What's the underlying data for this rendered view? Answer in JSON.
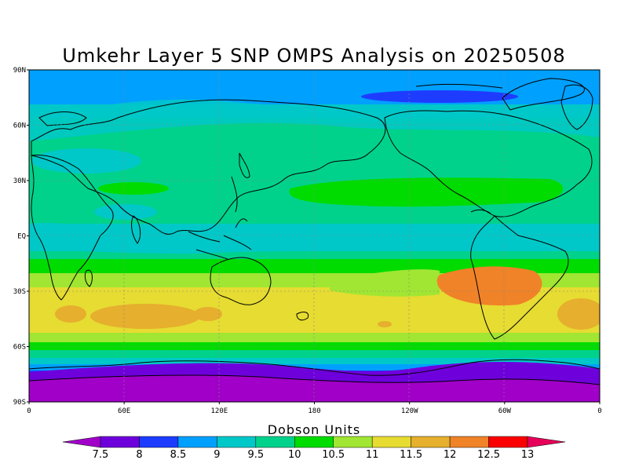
{
  "title": "Umkehr Layer 5 SNP OMPS Analysis on 20250508",
  "axes": {
    "y_ticks": [
      "90N",
      "60N",
      "30N",
      "EQ",
      "30S",
      "60S",
      "90S"
    ],
    "x_ticks": [
      "0",
      "60E",
      "120E",
      "180",
      "120W",
      "60W",
      "0"
    ],
    "lat_values": [
      90,
      60,
      30,
      0,
      -30,
      -60,
      -90
    ],
    "lon_values": [
      0,
      60,
      120,
      180,
      240,
      300,
      360
    ]
  },
  "colorbar": {
    "title": "Dobson Units",
    "labels": [
      "7.5",
      "8",
      "8.5",
      "9",
      "9.5",
      "10",
      "10.5",
      "11",
      "11.5",
      "12",
      "12.5",
      "13"
    ],
    "colors": [
      "#a000c8",
      "#6e00dc",
      "#1e3cff",
      "#00a0ff",
      "#00c8c8",
      "#00d28c",
      "#00dc00",
      "#a0e632",
      "#e6dc32",
      "#e6af2d",
      "#f08228",
      "#fa0000",
      "#e6005a"
    ]
  },
  "map": {
    "style": "filled contour of ozone column (Dobson Units) over world coastline",
    "grid": true
  }
}
